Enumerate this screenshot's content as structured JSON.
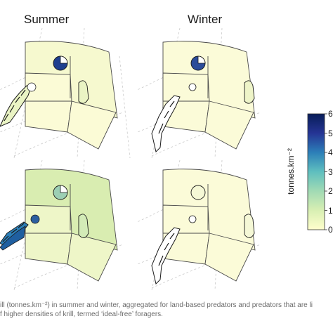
{
  "titles": {
    "summer": "Summer",
    "winter": "Winter"
  },
  "colorbar": {
    "unit": "tonnes.km⁻²",
    "ticks": [
      "0",
      "1",
      "2",
      "3",
      "4",
      "5",
      "6"
    ],
    "tick_labels_visible": [
      "6",
      "5",
      "4",
      "3",
      "2",
      "1",
      "0"
    ],
    "colors": [
      "#ffffcc",
      "#d8efb3",
      "#a1dab4",
      "#5fbfbf",
      "#2c7fb8",
      "#253494",
      "#081d58"
    ]
  },
  "panels": {
    "summer_top": {
      "fill_big": "#f6f9cf",
      "fill_lower_mid": "#fbfbd6",
      "colony": "#1f3f8f",
      "island": "#eaf4c4"
    },
    "winter_top": {
      "fill_big": "#fbfbd8",
      "fill_lower_mid": "#fbfbd8",
      "colony": "#2b4c9a",
      "island": "#eef4c8"
    },
    "summer_bottom": {
      "fill_big": "#d9edb1",
      "fill_lower_mid": "#eef6c8",
      "colony": "#9ccfb4",
      "island": "#d3ebb7"
    },
    "winter_bottom": {
      "fill_big": "#fbfbd8",
      "fill_lower_mid": "#fbfbd8",
      "colony": "#f5f8d6",
      "island": "#f5f8d6"
    }
  },
  "caption": {
    "line1": "ill (tonnes.km⁻²) in summer and winter, aggregated for land-based predators and predators that are li",
    "line2": "f higher densities of krill, termed ‘ideal-free’ foragers."
  }
}
